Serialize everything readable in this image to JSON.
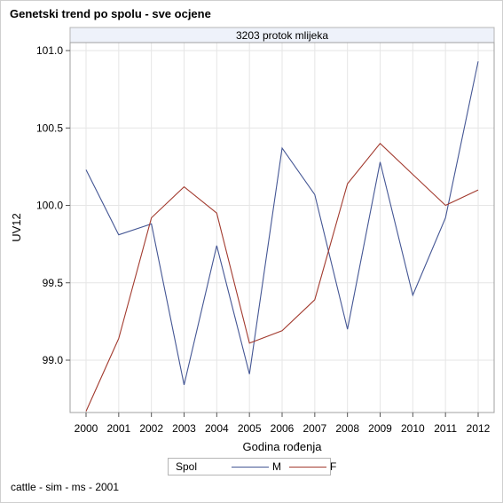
{
  "title": "Genetski trend po spolu - sve ocjene",
  "footnote": "cattle - sim - ms - 2001",
  "legend": {
    "title": "Spol"
  },
  "colors": {
    "M": "#445694",
    "F": "#a23a2e"
  },
  "chart_data": {
    "type": "line",
    "panel_label": "3203 protok mlijeka",
    "xlabel": "Godina rođenja",
    "ylabel": "UV12",
    "x": [
      2000,
      2001,
      2002,
      2003,
      2004,
      2005,
      2006,
      2007,
      2008,
      2009,
      2010,
      2011,
      2012
    ],
    "yticks": [
      99.0,
      99.5,
      100.0,
      100.5,
      101.0
    ],
    "ylim": [
      98.67,
      101.04
    ],
    "grid": true,
    "legend_position": "bottom",
    "series": [
      {
        "name": "M",
        "values": [
          100.23,
          99.81,
          99.88,
          98.84,
          99.74,
          98.91,
          100.37,
          100.07,
          99.2,
          100.28,
          99.42,
          99.92,
          100.93
        ]
      },
      {
        "name": "F",
        "values": [
          98.67,
          99.14,
          99.92,
          100.12,
          99.95,
          99.11,
          99.19,
          99.39,
          100.14,
          100.4,
          100.2,
          100.0,
          100.1
        ]
      }
    ]
  }
}
